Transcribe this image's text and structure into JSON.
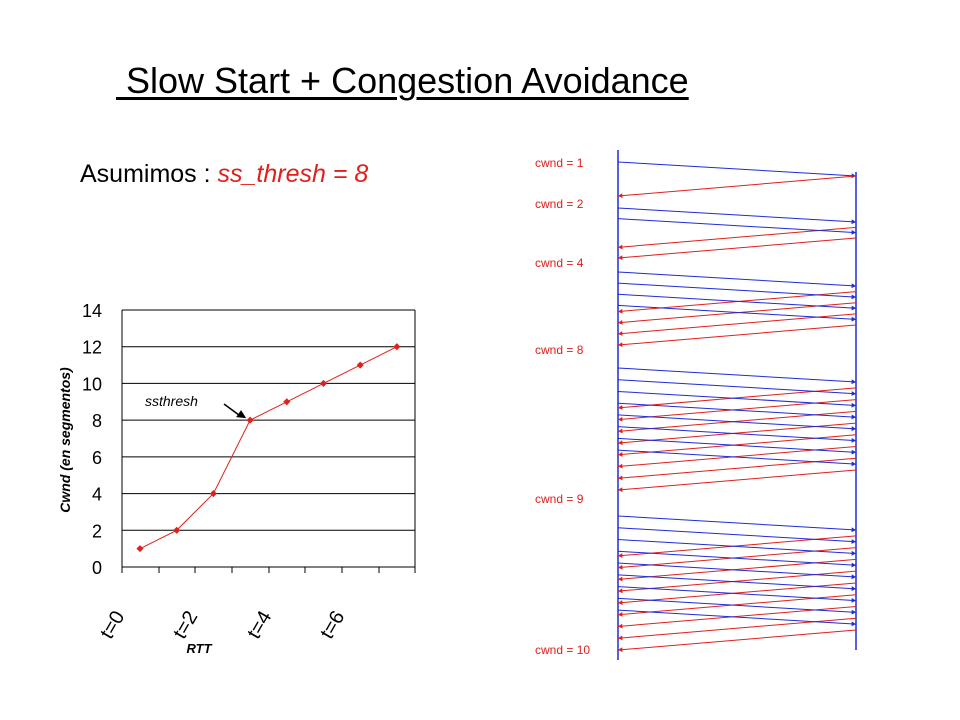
{
  "slide": {
    "title": " Slow Start + Congestion Avoidance",
    "assumption_prefix": "Asumimos : ",
    "assumption_value": "ss_thresh = 8"
  },
  "colors": {
    "red": "#e0201b",
    "blue": "#1f2bd6",
    "black": "#000000"
  },
  "chart_data": {
    "type": "line",
    "ylabel": "Cwnd (en segmentos)",
    "xlabel": "RTT",
    "x": [
      0,
      1,
      2,
      3,
      4,
      5,
      6,
      7
    ],
    "values": [
      1,
      2,
      4,
      8,
      9,
      10,
      11,
      12
    ],
    "ylim": [
      0,
      14
    ],
    "yticks": [
      0,
      2,
      4,
      6,
      8,
      10,
      12,
      14
    ],
    "xtick_labels": [
      "t=0",
      "t=2",
      "t=4",
      "t=6"
    ],
    "annotation": {
      "text": "ssthresh",
      "point_index": 3
    },
    "grid": "horizontal"
  },
  "timeline": {
    "rounds": [
      {
        "label": "cwnd = 1",
        "segments": 1
      },
      {
        "label": "cwnd = 2",
        "segments": 2
      },
      {
        "label": "cwnd = 4",
        "segments": 4
      },
      {
        "label": "cwnd = 8",
        "segments": 8
      },
      {
        "label": "cwnd = 9",
        "segments": 9
      },
      {
        "label": "cwnd = 10",
        "segments": 0
      }
    ]
  }
}
